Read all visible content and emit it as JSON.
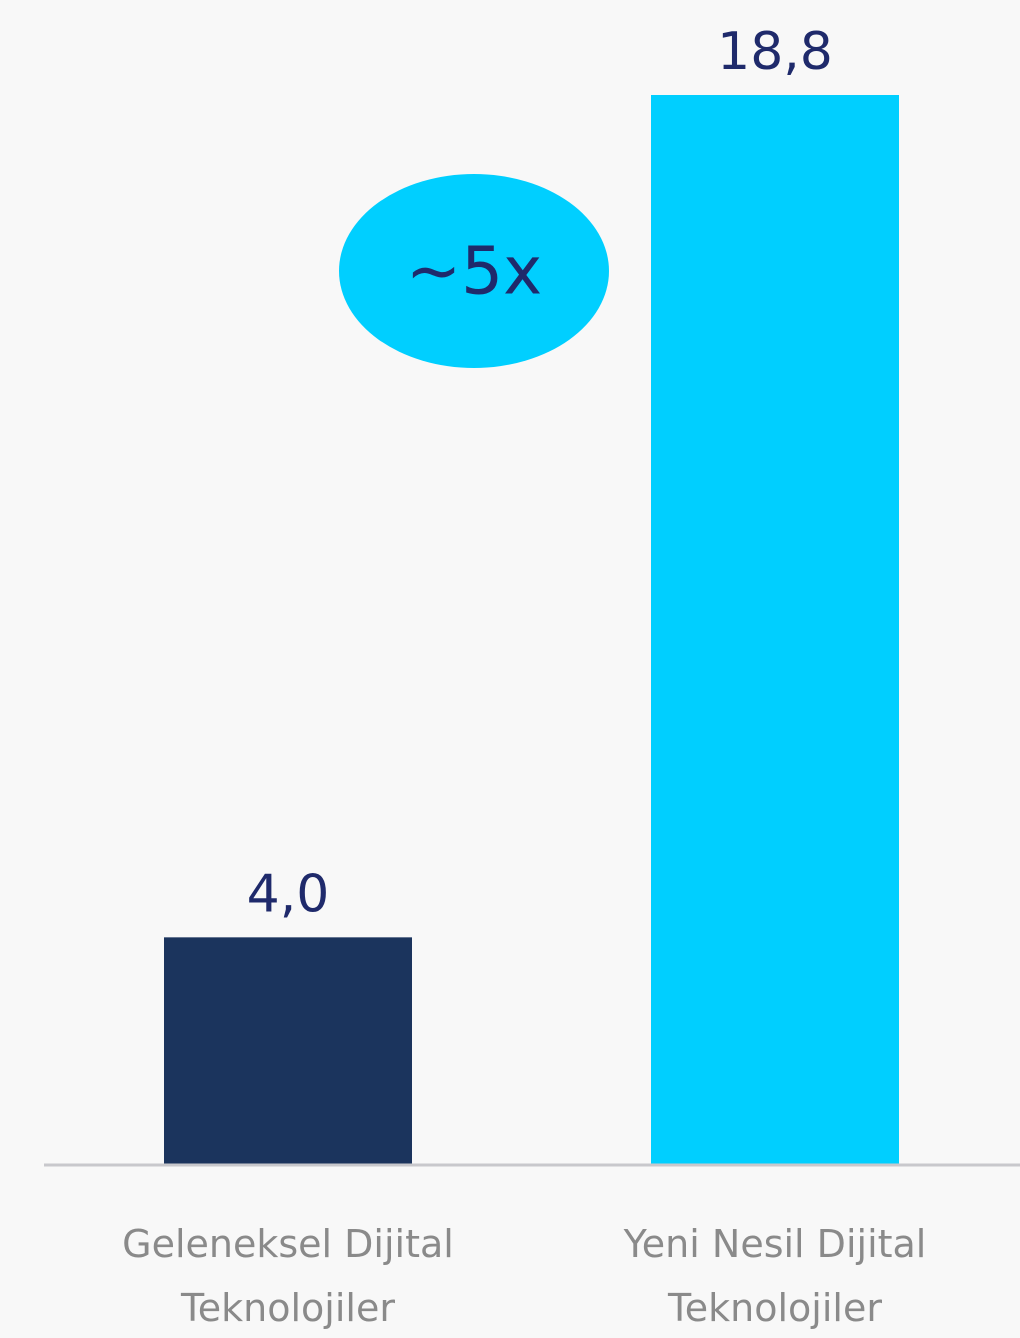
{
  "chart_data": {
    "type": "bar",
    "categories": [
      [
        "Geleneksel Dijital",
        "Teknolojiler"
      ],
      [
        "Yeni Nesil Dijital",
        "Teknolojiler"
      ]
    ],
    "values": [
      4.0,
      18.8
    ],
    "value_labels": [
      "4,0",
      "18,8"
    ],
    "bar_colors": [
      "#1b345d",
      "#00cfff"
    ],
    "ylim": [
      0,
      18.8
    ],
    "grid": false,
    "annotation": {
      "text": "~5x",
      "shape": "ellipse",
      "color": "#00cfff",
      "text_color": "#1f2a6b"
    },
    "axis_color": "#c8c8cc",
    "value_label_color": "#1f2a6b",
    "category_label_color": "#8a8a8a"
  }
}
